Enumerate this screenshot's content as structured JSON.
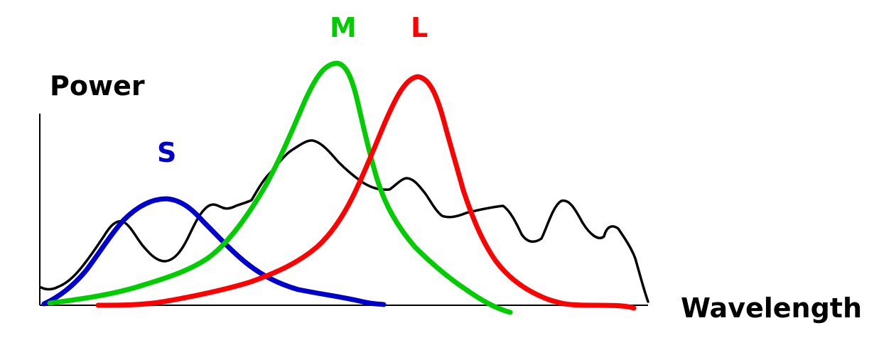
{
  "labels": {
    "y_axis": "Power",
    "x_axis": "Wavelength",
    "s": "S",
    "m": "M",
    "l": "L"
  },
  "colors": {
    "axis": "#000000",
    "spectrum": "#000000",
    "s": "#0000cc",
    "m": "#00cc00",
    "l": "#ff0000"
  }
}
